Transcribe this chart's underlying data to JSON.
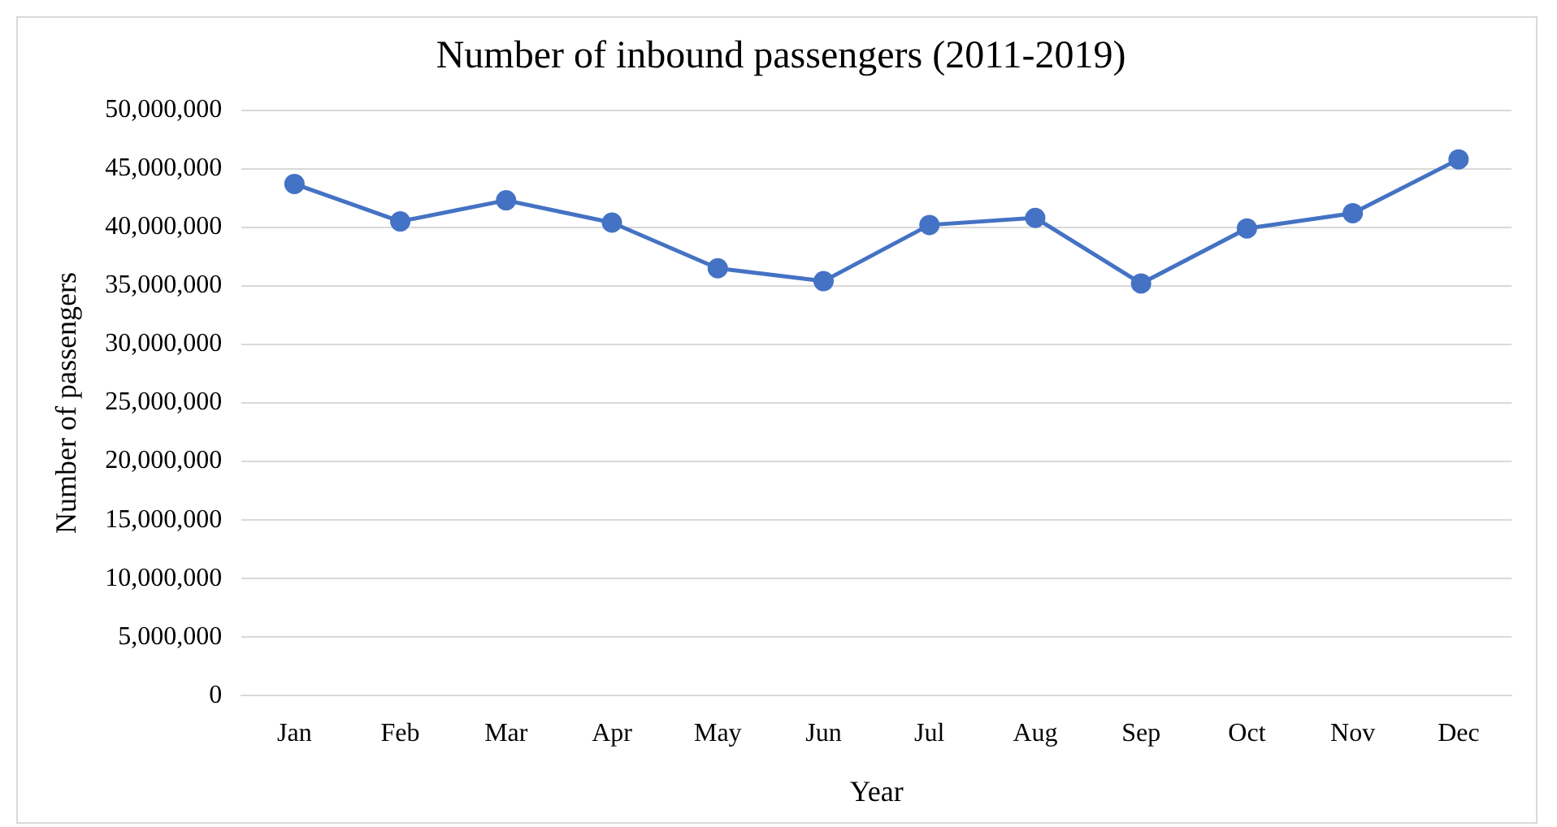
{
  "chart_data": {
    "type": "line",
    "title": "Number of inbound passengers (2011-2019)",
    "xlabel": "Year",
    "ylabel": "Number of passengers",
    "categories": [
      "Jan",
      "Feb",
      "Mar",
      "Apr",
      "May",
      "Jun",
      "Jul",
      "Aug",
      "Sep",
      "Oct",
      "Nov",
      "Dec"
    ],
    "series": [
      {
        "color": "#4472c4",
        "values": [
          43700000,
          40500000,
          42300000,
          40400000,
          36500000,
          35400000,
          40200000,
          40800000,
          35200000,
          39900000,
          41200000,
          45800000
        ]
      }
    ],
    "ylim": [
      0,
      50000000
    ],
    "yticks": [
      {
        "value": 0,
        "label": "0"
      },
      {
        "value": 5000000,
        "label": "5,000,000"
      },
      {
        "value": 10000000,
        "label": "10,000,000"
      },
      {
        "value": 15000000,
        "label": "15,000,000"
      },
      {
        "value": 20000000,
        "label": "20,000,000"
      },
      {
        "value": 25000000,
        "label": "25,000,000"
      },
      {
        "value": 30000000,
        "label": "30,000,000"
      },
      {
        "value": 35000000,
        "label": "35,000,000"
      },
      {
        "value": 40000000,
        "label": "40,000,000"
      },
      {
        "value": 45000000,
        "label": "45,000,000"
      },
      {
        "value": 50000000,
        "label": "50,000,000"
      }
    ],
    "grid": "y",
    "legend": false,
    "marker": "circle",
    "line_style": "solid"
  }
}
